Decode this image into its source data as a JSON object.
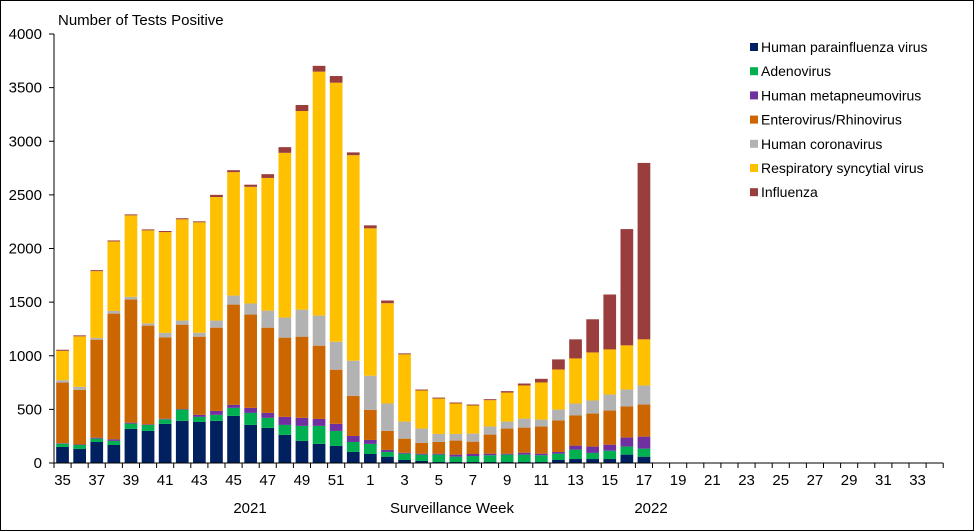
{
  "chart_data": {
    "type": "bar",
    "stacked": true,
    "title": "",
    "ylabel": "Number of Tests Positive",
    "xlabel": "Surveillance Week",
    "year_labels": [
      "2021",
      "2022"
    ],
    "ylim": [
      0,
      4000
    ],
    "yticks": [
      0,
      500,
      1000,
      1500,
      2000,
      2500,
      3000,
      3500,
      4000
    ],
    "grid": false,
    "legend_position": "top-right",
    "axis_weeks": [
      "35",
      "36",
      "37",
      "38",
      "39",
      "40",
      "41",
      "42",
      "43",
      "44",
      "45",
      "46",
      "47",
      "48",
      "49",
      "50",
      "51",
      "52",
      "1",
      "2",
      "3",
      "4",
      "5",
      "6",
      "7",
      "8",
      "9",
      "10",
      "11",
      "12",
      "13",
      "14",
      "15",
      "16",
      "17",
      "18",
      "19",
      "20",
      "21",
      "22",
      "23",
      "24",
      "25",
      "26",
      "27",
      "28",
      "29",
      "30",
      "31",
      "32",
      "33",
      "34"
    ],
    "xtick_labels": [
      "35",
      "37",
      "39",
      "41",
      "43",
      "45",
      "47",
      "49",
      "51",
      "1",
      "3",
      "5",
      "7",
      "9",
      "11",
      "13",
      "15",
      "17",
      "19",
      "21",
      "23",
      "25",
      "27",
      "29",
      "31",
      "33"
    ],
    "categories": [
      "35",
      "36",
      "37",
      "38",
      "39",
      "40",
      "41",
      "42",
      "43",
      "44",
      "45",
      "46",
      "47",
      "48",
      "49",
      "50",
      "51",
      "52",
      "1",
      "2",
      "3",
      "4",
      "5",
      "6",
      "7",
      "8",
      "9",
      "10",
      "11",
      "12",
      "13",
      "14",
      "15",
      "16",
      "17"
    ],
    "series": [
      {
        "name": "Human parainfluenza virus",
        "color": "#002060",
        "values": [
          150,
          131,
          196,
          168,
          318,
          299,
          365,
          393,
          383,
          393,
          439,
          355,
          327,
          262,
          206,
          178,
          159,
          103,
          84,
          59,
          28,
          19,
          9,
          9,
          9,
          9,
          9,
          9,
          9,
          28,
          37,
          37,
          37,
          78,
          59
        ]
      },
      {
        "name": "Adenovirus",
        "color": "#00B050",
        "values": [
          30,
          37,
          31,
          38,
          49,
          56,
          43,
          105,
          47,
          56,
          75,
          112,
          94,
          93,
          140,
          168,
          140,
          93,
          94,
          44,
          59,
          59,
          69,
          50,
          56,
          63,
          69,
          69,
          63,
          59,
          88,
          57,
          78,
          75,
          75
        ]
      },
      {
        "name": "Human metapneumovirus",
        "color": "#7030A0",
        "values": [
          5,
          5,
          9,
          15,
          9,
          5,
          5,
          5,
          19,
          37,
          28,
          47,
          46,
          75,
          75,
          65,
          66,
          56,
          37,
          19,
          9,
          9,
          9,
          19,
          19,
          15,
          9,
          18,
          15,
          16,
          37,
          59,
          56,
          84,
          112
        ]
      },
      {
        "name": "Enterovirus/Rhinovirus",
        "color": "#CC6600",
        "values": [
          565,
          510,
          914,
          1172,
          1148,
          921,
          759,
          787,
          729,
          776,
          935,
          870,
          795,
          739,
          757,
          683,
          505,
          374,
          281,
          177,
          131,
          100,
          109,
          131,
          115,
          178,
          234,
          234,
          253,
          293,
          281,
          308,
          318,
          290,
          299
        ]
      },
      {
        "name": "Human coronavirus",
        "color": "#B2B2B2",
        "values": [
          22,
          27,
          16,
          25,
          25,
          21,
          41,
          38,
          37,
          66,
          84,
          103,
          159,
          187,
          252,
          280,
          261,
          328,
          318,
          256,
          159,
          134,
          75,
          62,
          75,
          75,
          65,
          84,
          65,
          102,
          112,
          122,
          150,
          158,
          178
        ]
      },
      {
        "name": "Respiratory syncytial virus",
        "color": "#FFC000",
        "values": [
          274,
          471,
          623,
          648,
          760,
          867,
          940,
          944,
          1029,
          1152,
          1151,
          1088,
          1237,
          1536,
          1852,
          2275,
          2415,
          1916,
          1374,
          935,
          627,
          355,
          330,
          284,
          262,
          246,
          271,
          309,
          346,
          374,
          420,
          448,
          420,
          412,
          430
        ]
      },
      {
        "name": "Influenza",
        "color": "#993D3D",
        "values": [
          10,
          9,
          9,
          9,
          9,
          9,
          10,
          10,
          9,
          20,
          18,
          20,
          35,
          53,
          56,
          54,
          62,
          26,
          28,
          25,
          9,
          9,
          9,
          9,
          9,
          9,
          13,
          18,
          34,
          94,
          178,
          309,
          512,
          1084,
          1645
        ]
      }
    ]
  }
}
